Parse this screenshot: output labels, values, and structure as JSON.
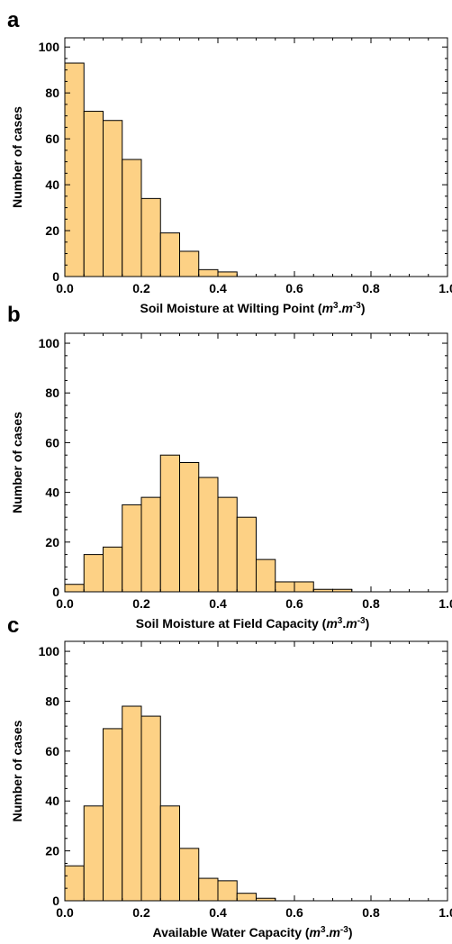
{
  "chart_data": [
    {
      "panel": "a",
      "type": "bar",
      "xlabel": "Soil Moisture at Wilting Point",
      "xlabel_unit": [
        "m",
        "3",
        ".",
        "m",
        "-3"
      ],
      "ylabel": "Number of cases",
      "xlim": [
        0,
        1
      ],
      "ylim": [
        0,
        104
      ],
      "bin_width": 0.05,
      "bin_starts": [
        0,
        0.05,
        0.1,
        0.15,
        0.2,
        0.25,
        0.3,
        0.35,
        0.4
      ],
      "values": [
        93,
        72,
        68,
        51,
        34,
        19,
        11,
        3,
        2
      ],
      "xticks": [
        "0.0",
        "0.2",
        "0.4",
        "0.6",
        "0.8",
        "1.0"
      ],
      "yticks": [
        "0",
        "20",
        "40",
        "60",
        "80",
        "100"
      ],
      "bar_color": "#fdd185"
    },
    {
      "panel": "b",
      "type": "bar",
      "xlabel": "Soil Moisture at Field Capacity",
      "xlabel_unit": [
        "m",
        "3",
        ".",
        "m",
        "-3"
      ],
      "ylabel": "Number of cases",
      "xlim": [
        0,
        1
      ],
      "ylim": [
        0,
        104
      ],
      "bin_width": 0.05,
      "bin_starts": [
        0,
        0.05,
        0.1,
        0.15,
        0.2,
        0.25,
        0.3,
        0.35,
        0.4,
        0.45,
        0.5,
        0.55,
        0.6,
        0.65,
        0.7
      ],
      "values": [
        3,
        15,
        18,
        35,
        38,
        55,
        52,
        46,
        38,
        30,
        13,
        4,
        4,
        1,
        1
      ],
      "xticks": [
        "0.0",
        "0.2",
        "0.4",
        "0.6",
        "0.8",
        "1.0"
      ],
      "yticks": [
        "0",
        "20",
        "40",
        "60",
        "80",
        "100"
      ],
      "bar_color": "#fdd185"
    },
    {
      "panel": "c",
      "type": "bar",
      "xlabel": "Available Water Capacity",
      "xlabel_unit": [
        "m",
        "3",
        ".",
        "m",
        "-3"
      ],
      "ylabel": "Number of cases",
      "xlim": [
        0,
        1
      ],
      "ylim": [
        0,
        104
      ],
      "bin_width": 0.05,
      "bin_starts": [
        0,
        0.05,
        0.1,
        0.15,
        0.2,
        0.25,
        0.3,
        0.35,
        0.4,
        0.45,
        0.5
      ],
      "values": [
        14,
        38,
        69,
        78,
        74,
        38,
        21,
        9,
        8,
        3,
        1
      ],
      "xticks": [
        "0.0",
        "0.2",
        "0.4",
        "0.6",
        "0.8",
        "1.0"
      ],
      "yticks": [
        "0",
        "20",
        "40",
        "60",
        "80",
        "100"
      ],
      "bar_color": "#fdd185"
    }
  ]
}
